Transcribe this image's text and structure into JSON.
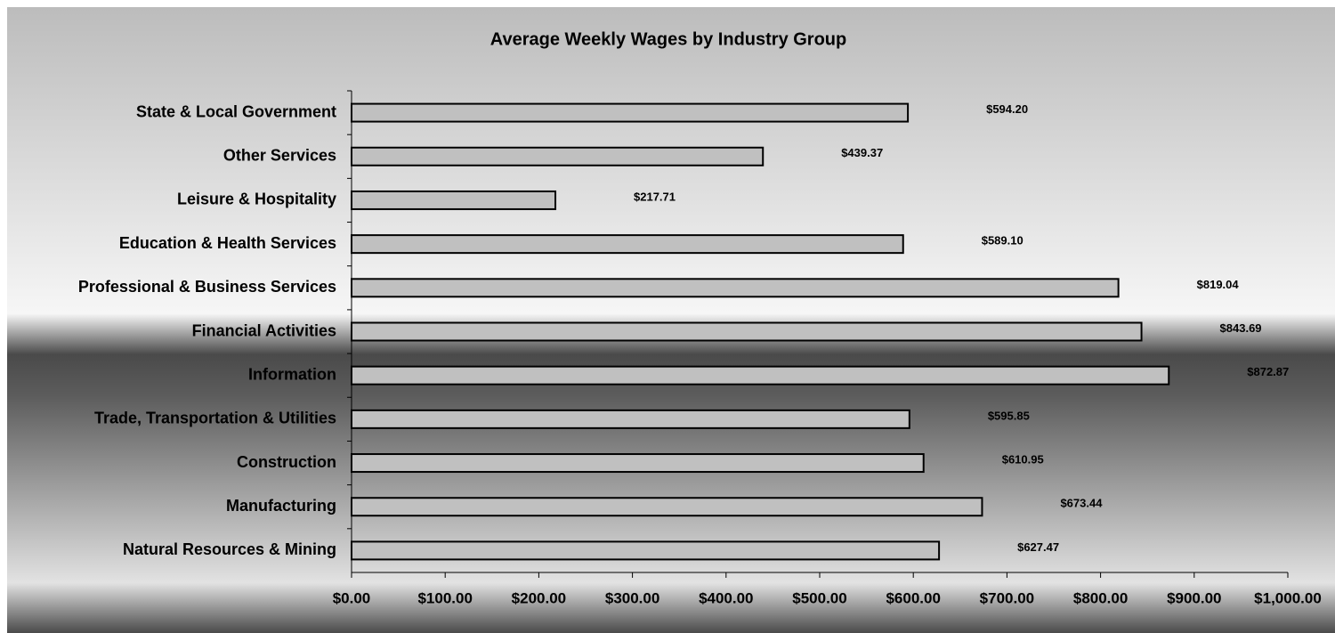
{
  "chart_data": {
    "type": "bar",
    "orientation": "horizontal",
    "title": "Average Weekly Wages by Industry Group",
    "categories": [
      "State & Local Government",
      "Other Services",
      "Leisure & Hospitality",
      "Education & Health Services",
      "Professional & Business Services",
      "Financial Activities",
      "Information",
      "Trade, Transportation & Utilities",
      "Construction",
      "Manufacturing",
      "Natural Resources & Mining"
    ],
    "values": [
      594.2,
      439.37,
      217.71,
      589.1,
      819.04,
      843.69,
      872.87,
      595.85,
      610.95,
      673.44,
      627.47
    ],
    "value_labels": [
      "$594.20",
      "$439.37",
      "$217.71",
      "$589.10",
      "$819.04",
      "$843.69",
      "$872.87",
      "$595.85",
      "$610.95",
      "$673.44",
      "$627.47"
    ],
    "color": "#c0c0c0",
    "xlim": [
      0,
      1000
    ],
    "xticks": [
      {
        "value": 0,
        "label": "$0.00"
      },
      {
        "value": 100,
        "label": "$100.00"
      },
      {
        "value": 200,
        "label": "$200.00"
      },
      {
        "value": 300,
        "label": "$300.00"
      },
      {
        "value": 400,
        "label": "$400.00"
      },
      {
        "value": 500,
        "label": "$500.00"
      },
      {
        "value": 600,
        "label": "$600.00"
      },
      {
        "value": 700,
        "label": "$700.00"
      },
      {
        "value": 800,
        "label": "$800.00"
      },
      {
        "value": 900,
        "label": "$900.00"
      },
      {
        "value": 1000,
        "label": "$1,000.00"
      }
    ],
    "grid": false
  }
}
